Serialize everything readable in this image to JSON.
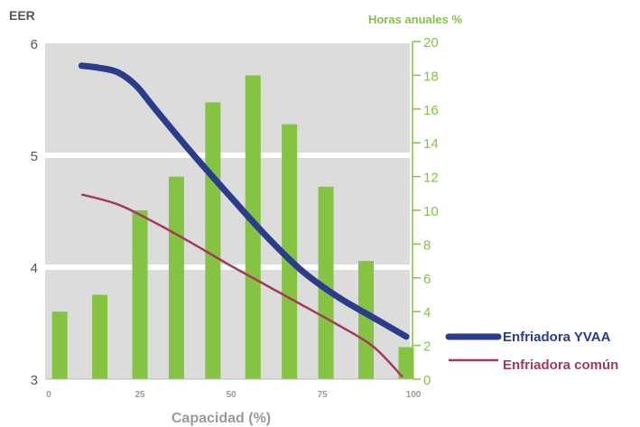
{
  "chart_data": {
    "type": "bar+line",
    "title": "",
    "xlabel": "Capacidad (%)",
    "ylabel_left": "EER",
    "ylabel_right": "Horas anuales %",
    "x_ticks": [
      0,
      25,
      50,
      75,
      100
    ],
    "xlim": [
      0,
      100
    ],
    "ylim_left": [
      3,
      6
    ],
    "ylim_right": [
      0,
      20
    ],
    "y_left_ticks": [
      3,
      4,
      5,
      6
    ],
    "y_right_ticks": [
      0,
      2,
      4,
      6,
      8,
      10,
      12,
      14,
      16,
      18,
      20
    ],
    "grid": "horizontal bands",
    "legend_position": "bottom-right",
    "bars": {
      "name": "",
      "axis": "right",
      "x": [
        4,
        15,
        26,
        36,
        46,
        57,
        67,
        77,
        88,
        99
      ],
      "values": [
        4.0,
        5.0,
        10.0,
        12.0,
        16.4,
        18.0,
        15.1,
        11.4,
        7.0,
        1.9
      ]
    },
    "series": [
      {
        "name": "Enfriadora YVAA",
        "axis": "left",
        "x": [
          10,
          15,
          20,
          25,
          30,
          40,
          50,
          60,
          70,
          80,
          90,
          99
        ],
        "values": [
          5.8,
          5.78,
          5.74,
          5.62,
          5.42,
          5.03,
          4.66,
          4.3,
          3.98,
          3.74,
          3.55,
          3.38
        ]
      },
      {
        "name": "Enfriadora común",
        "axis": "left",
        "x": [
          10,
          20,
          30,
          40,
          50,
          60,
          70,
          80,
          90,
          98
        ],
        "values": [
          4.65,
          4.56,
          4.4,
          4.22,
          4.03,
          3.85,
          3.67,
          3.49,
          3.29,
          3.02
        ]
      }
    ],
    "colors": {
      "bars": "#85c443",
      "right_axis": "#85c443",
      "yvaa": "#2a3c8a",
      "comun": "#a33a5c",
      "band": "#dcdcdc",
      "left_axis_text": "#555555",
      "x_axis_text": "#9a9a9a"
    }
  }
}
